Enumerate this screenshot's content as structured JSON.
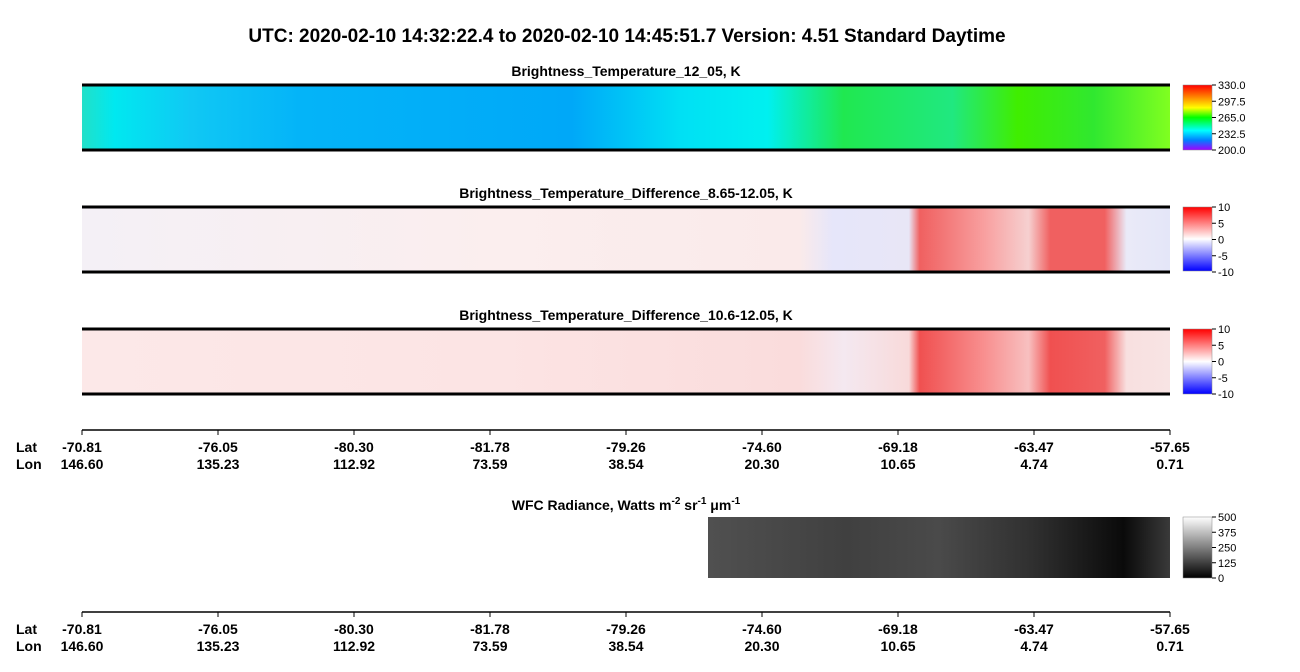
{
  "title": "UTC:  2020-02-10   14:32:22.4  to  2020-02-10   14:45:51.7    Version: 4.51  Standard Daytime",
  "panels": [
    {
      "title": "Brightness_Temperature_12_05, K",
      "colorbar": [
        "330.0",
        "297.5",
        "265.0",
        "232.5",
        "200.0"
      ]
    },
    {
      "title": "Brightness_Temperature_Difference_8.65-12.05, K",
      "colorbar": [
        "10",
        "5",
        "0",
        "-5",
        "-10"
      ]
    },
    {
      "title": "Brightness_Temperature_Difference_10.6-12.05, K",
      "colorbar": [
        "10",
        "5",
        "0",
        "-5",
        "-10"
      ]
    }
  ],
  "wfc": {
    "title": [
      "WFC Radiance, Watts m",
      "-2",
      " sr",
      "-1",
      " μm",
      "-1"
    ],
    "colorbar": [
      "500",
      "375",
      "250",
      "125",
      "0"
    ]
  },
  "axis": {
    "lat_label": "Lat",
    "lon_label": "Lon",
    "lat": [
      "-70.81",
      "-76.05",
      "-80.30",
      "-81.78",
      "-79.26",
      "-74.60",
      "-69.18",
      "-63.47",
      "-57.65"
    ],
    "lon": [
      "146.60",
      "135.23",
      "112.92",
      "73.59",
      "38.54",
      "20.30",
      "10.65",
      "4.74",
      "0.71"
    ]
  }
}
